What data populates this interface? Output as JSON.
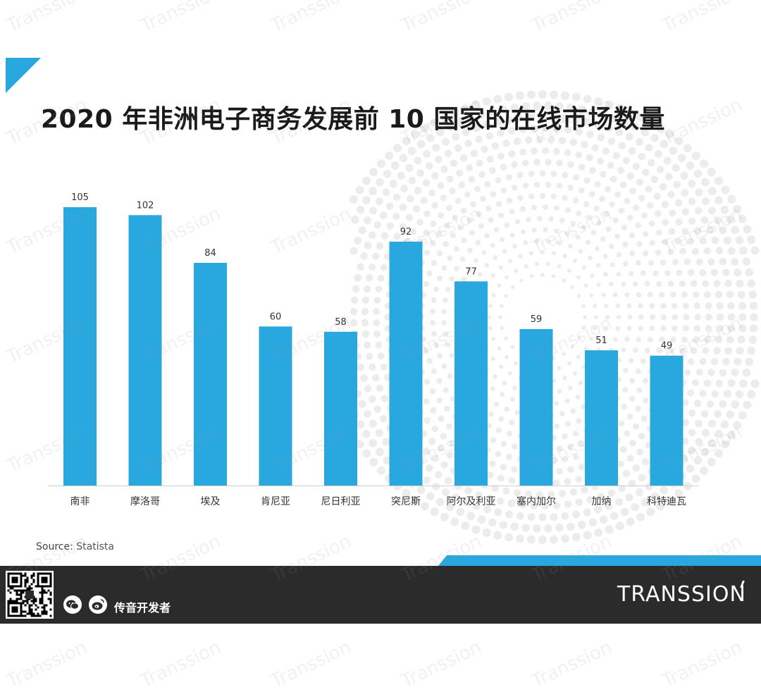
{
  "title": "2020 年非洲电子商务发展前 10 国家的在线市场数量",
  "source_label": "Source:",
  "source_value": "Statista",
  "footer": {
    "account": "传音开发者",
    "brand": "TRANSSION"
  },
  "watermark": "Transsion",
  "colors": {
    "bar": "#29a8e0",
    "footer_bg": "#2b2b2b",
    "accent": "#29a8e0"
  },
  "chart_data": {
    "type": "bar",
    "title": "2020 年非洲电子商务发展前 10 国家的在线市场数量",
    "categories": [
      "南非",
      "摩洛哥",
      "埃及",
      "肯尼亚",
      "尼日利亚",
      "突尼斯",
      "阿尔及利亚",
      "塞内加尔",
      "加纳",
      "科特迪瓦"
    ],
    "values": [
      105,
      102,
      84,
      60,
      58,
      92,
      77,
      59,
      51,
      49
    ],
    "xlabel": "",
    "ylabel": "",
    "grid": false
  }
}
